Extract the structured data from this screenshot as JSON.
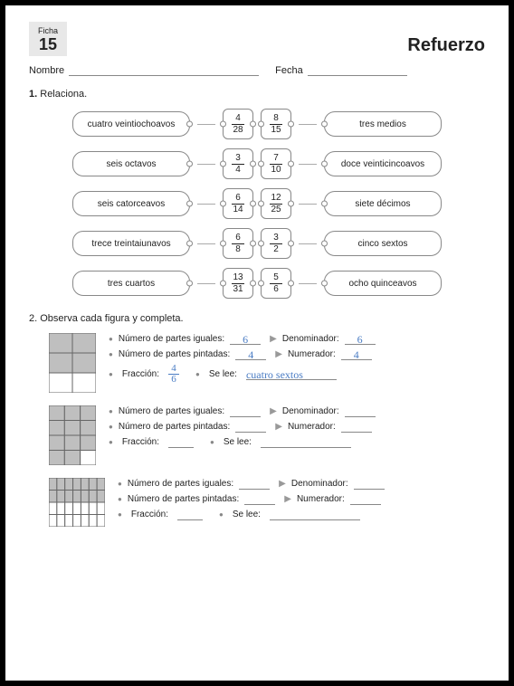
{
  "header": {
    "ficha_label": "Ficha",
    "ficha_number": "15",
    "title": "Refuerzo",
    "nombre_label": "Nombre",
    "fecha_label": "Fecha"
  },
  "section1": {
    "number": "1.",
    "title": "Relaciona.",
    "rows": [
      {
        "left": "cuatro veintiochoavos",
        "f1n": "4",
        "f1d": "28",
        "f2n": "8",
        "f2d": "15",
        "right": "tres medios"
      },
      {
        "left": "seis octavos",
        "f1n": "3",
        "f1d": "4",
        "f2n": "7",
        "f2d": "10",
        "right": "doce veinticincoavos"
      },
      {
        "left": "seis catorceavos",
        "f1n": "6",
        "f1d": "14",
        "f2n": "12",
        "f2d": "25",
        "right": "siete décimos"
      },
      {
        "left": "trece treintaiunavos",
        "f1n": "6",
        "f1d": "8",
        "f2n": "3",
        "f2d": "2",
        "right": "cinco sextos"
      },
      {
        "left": "tres cuartos",
        "f1n": "13",
        "f1d": "31",
        "f2n": "5",
        "f2d": "6",
        "right": "ocho quinceavos"
      }
    ]
  },
  "section2": {
    "number": "2.",
    "title": "Observa cada figura y completa.",
    "labels": {
      "partes_iguales": "Número de partes iguales:",
      "partes_pintadas": "Número de partes pintadas:",
      "denominador": "Denominador:",
      "numerador": "Numerador:",
      "fraccion": "Fracción:",
      "se_lee": "Se lee:"
    },
    "figures": [
      {
        "shape": {
          "cols": 2,
          "rows": 3,
          "w": 52,
          "h": 66,
          "fill_rows": 2,
          "stroke": "#666",
          "shade": "#bfbfbf"
        },
        "partes_iguales": "6",
        "partes_pintadas": "4",
        "denominador": "6",
        "numerador": "4",
        "frac_n": "4",
        "frac_d": "6",
        "se_lee": "cuatro sextos"
      },
      {
        "shape": {
          "cols": 3,
          "rows": 4,
          "w": 52,
          "h": 66,
          "fill_cells": 11,
          "stroke": "#666",
          "shade": "#bfbfbf"
        },
        "partes_iguales": "",
        "partes_pintadas": "",
        "denominador": "",
        "numerador": "",
        "frac_n": "",
        "frac_d": "",
        "se_lee": ""
      },
      {
        "shape": {
          "cols": 7,
          "rows": 4,
          "w": 62,
          "h": 54,
          "fill_rows": 2,
          "stroke": "#666",
          "shade": "#bfbfbf"
        },
        "partes_iguales": "",
        "partes_pintadas": "",
        "denominador": "",
        "numerador": "",
        "frac_n": "",
        "frac_d": "",
        "se_lee": ""
      }
    ]
  }
}
